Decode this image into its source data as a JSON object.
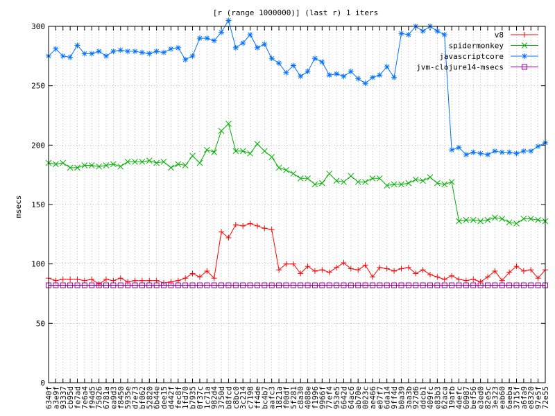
{
  "chart_data": {
    "type": "line",
    "title": "[r (range 1000000)] (last r) 1 iters",
    "xlabel": "",
    "ylabel": "msecs",
    "ylim": [
      0,
      300
    ],
    "yticks": [
      0,
      50,
      100,
      150,
      200,
      250,
      300
    ],
    "grid": true,
    "legend": "top-right",
    "categories": [
      "6340f",
      "a3e9f",
      "93337",
      "cb95d",
      "fe7ad",
      "7e6a4",
      "f94d5",
      "75026",
      "6781a",
      "ea9d3",
      "f8450",
      "5935e",
      "d7e73",
      "bf062",
      "52820",
      "6b44e",
      "dee15",
      "d442f",
      "fec8f",
      "1fd70",
      "b7935",
      "0f37c",
      "1c71a",
      "982d4",
      "3750d",
      "b8fcd",
      "c8bc0",
      "3c214",
      "c7198",
      "ff4de",
      "bc4b7",
      "aafc3",
      "1821a",
      "f00df",
      "5f281",
      "c8a30",
      "4088e",
      "f1996",
      "9966f",
      "77ef4",
      "953e5",
      "6642d",
      "64ac6",
      "ab70e",
      "0023c",
      "ae466",
      "e07f7",
      "6da14",
      "9ff4d",
      "b0a39",
      "3aa3b",
      "927d6",
      "ddcb1",
      "409fc",
      "e83b3",
      "62aca",
      "19afb",
      "4defc",
      "60987",
      "bef56",
      "e3ed0",
      "82e5c",
      "3e323",
      "eab60",
      "6aeba",
      "3715f",
      "a6fa9",
      "e8320",
      "97e5f",
      "72e55"
    ],
    "series": [
      {
        "name": "v8",
        "color": "#ff0000",
        "marker": "plus",
        "values": [
          88,
          86,
          87,
          87,
          87,
          86,
          87,
          83,
          87,
          86,
          88,
          85,
          86,
          86,
          86,
          86,
          84,
          85,
          86,
          88,
          92,
          89,
          94,
          88,
          127,
          122,
          133,
          132,
          134,
          132,
          130,
          129,
          95,
          100,
          100,
          92,
          98,
          94,
          95,
          93,
          97,
          101,
          96,
          95,
          99,
          89,
          97,
          96,
          94,
          96,
          97,
          92,
          95,
          91,
          89,
          87,
          90,
          87,
          86,
          87,
          85,
          89,
          94,
          86,
          93,
          98,
          94,
          95,
          88,
          95
        ]
      },
      {
        "name": "spidermonkey",
        "color": "#00b000",
        "marker": "cross",
        "values": [
          185,
          184,
          185,
          181,
          181,
          183,
          183,
          182,
          183,
          184,
          182,
          186,
          186,
          186,
          187,
          185,
          186,
          181,
          184,
          183,
          191,
          185,
          196,
          194,
          212,
          218,
          195,
          195,
          193,
          201,
          195,
          190,
          181,
          179,
          176,
          172,
          172,
          167,
          168,
          176,
          170,
          169,
          174,
          169,
          169,
          172,
          172,
          166,
          167,
          167,
          168,
          171,
          170,
          173,
          168,
          167,
          169,
          136,
          137,
          137,
          136,
          137,
          139,
          138,
          135,
          134,
          138,
          138,
          137,
          136
        ]
      },
      {
        "name": "javascriptcore",
        "color": "#0070ff",
        "marker": "star",
        "values": [
          275,
          281,
          275,
          274,
          284,
          277,
          277,
          279,
          275,
          279,
          280,
          279,
          279,
          278,
          277,
          279,
          278,
          281,
          282,
          272,
          275,
          290,
          290,
          288,
          295,
          305,
          282,
          286,
          293,
          282,
          285,
          273,
          269,
          261,
          267,
          258,
          262,
          273,
          270,
          259,
          260,
          258,
          262,
          256,
          252,
          257,
          259,
          266,
          257,
          294,
          293,
          300,
          296,
          300,
          296,
          293,
          196,
          198,
          192,
          194,
          193,
          192,
          195,
          194,
          194,
          193,
          195,
          195,
          199,
          202
        ]
      },
      {
        "name": "jvm-clojure14-msecs",
        "color": "#a000a0",
        "marker": "square",
        "values": [
          82,
          82,
          82,
          82,
          82,
          82,
          82,
          82,
          82,
          82,
          82,
          82,
          82,
          82,
          82,
          82,
          82,
          82,
          82,
          82,
          82,
          82,
          82,
          82,
          82,
          82,
          82,
          82,
          82,
          82,
          82,
          82,
          82,
          82,
          82,
          82,
          82,
          82,
          82,
          82,
          82,
          82,
          82,
          82,
          82,
          82,
          82,
          82,
          82,
          82,
          82,
          82,
          82,
          82,
          82,
          82,
          82,
          82,
          82,
          82,
          82,
          82,
          82,
          82,
          82,
          82,
          82,
          82,
          82,
          82
        ]
      }
    ]
  }
}
